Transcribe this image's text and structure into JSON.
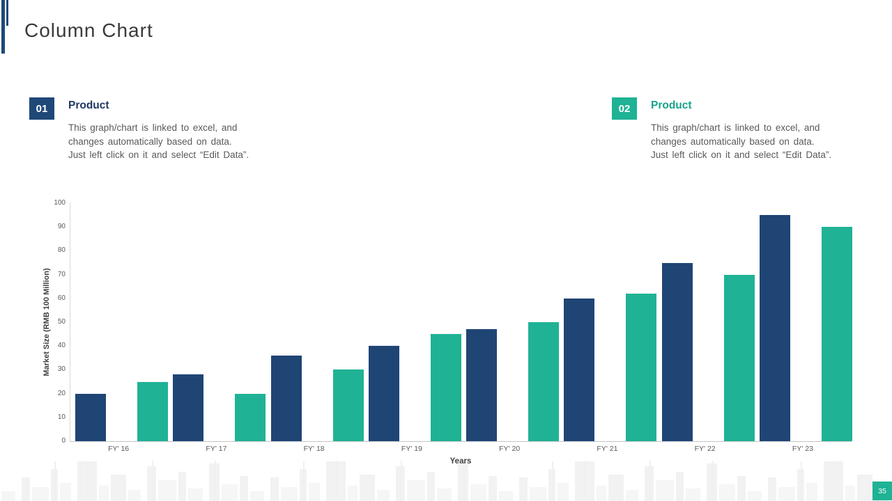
{
  "slide": {
    "title": "Column Chart",
    "page_number": "35"
  },
  "colors": {
    "navy": "#1F4575",
    "teal": "#1FB295",
    "badge_navy": "#1F4878",
    "heading_navy": "#1F3864",
    "heading_teal": "#18A289",
    "body_text": "#595959"
  },
  "sections": [
    {
      "badge": "01",
      "heading": "Product",
      "lines": [
        "This graph/chart is linked to excel, and",
        "changes automatically based on data.",
        "Just left click on it and select “Edit Data”."
      ]
    },
    {
      "badge": "02",
      "heading": "Product",
      "lines": [
        "This graph/chart is linked to excel, and",
        "changes automatically based on data.",
        "Just left click on it and select “Edit Data”."
      ]
    }
  ],
  "chart_data": {
    "type": "bar",
    "title": "",
    "categories": [
      "FY' 16",
      "FY' 17",
      "FY' 18",
      "FY' 19",
      "FY' 20",
      "FY' 21",
      "FY' 22",
      "FY' 23"
    ],
    "series": [
      {
        "name": "Product 01",
        "color": "#1F4575",
        "values": [
          20,
          28,
          36,
          40,
          47,
          60,
          75,
          95
        ]
      },
      {
        "name": "Product 02",
        "color": "#1FB295",
        "values": [
          25,
          20,
          30,
          45,
          50,
          62,
          70,
          90
        ]
      }
    ],
    "xlabel": "Years",
    "ylabel": "Market Size (RMB 100 Million)",
    "ylim": [
      0,
      100
    ],
    "ytick_step": 10,
    "grid": false,
    "legend": "none"
  }
}
